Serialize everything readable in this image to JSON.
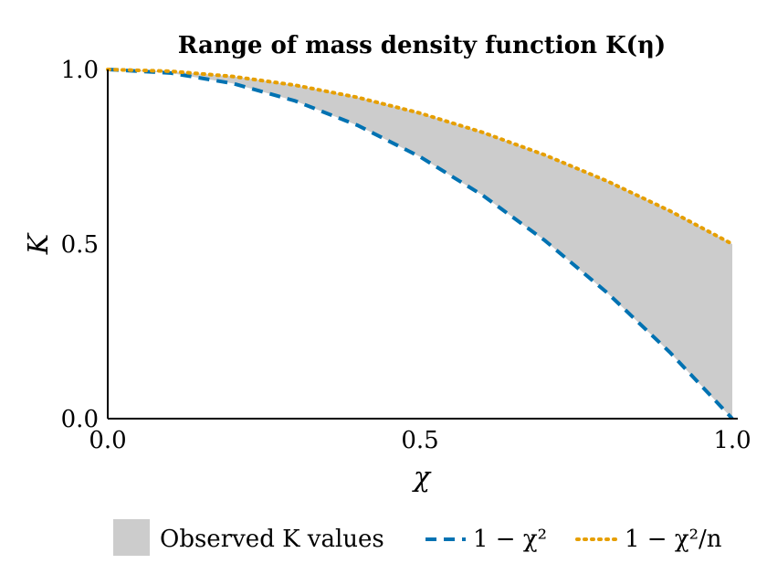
{
  "chart_data": {
    "type": "area",
    "title": "Range of mass density function K(η)",
    "xlabel": "χ",
    "ylabel": "K",
    "xlim": [
      0.0,
      1.0
    ],
    "ylim": [
      0.0,
      1.0
    ],
    "xticks": [
      "0.0",
      "0.5",
      "1.0"
    ],
    "yticks": [
      "0.0",
      "0.5",
      "1.0"
    ],
    "grid": false,
    "legend_position": "bottom",
    "band": {
      "name": "Observed K values",
      "color": "#cccccc",
      "lower_series": "1 − χ²",
      "upper_series": "1 − χ²/n"
    },
    "series": [
      {
        "name": "1 − χ²",
        "style": "dashed",
        "color": "#0072b2",
        "x": [
          0.0,
          0.1,
          0.2,
          0.3,
          0.4,
          0.5,
          0.6,
          0.7,
          0.8,
          0.9,
          1.0
        ],
        "y": [
          1.0,
          0.99,
          0.96,
          0.91,
          0.84,
          0.75,
          0.64,
          0.51,
          0.36,
          0.19,
          0.0
        ]
      },
      {
        "name": "1 − χ²/n",
        "style": "dotted",
        "color": "#e69f00",
        "x": [
          0.0,
          0.1,
          0.2,
          0.3,
          0.4,
          0.5,
          0.6,
          0.7,
          0.8,
          0.9,
          1.0
        ],
        "y": [
          1.0,
          0.995,
          0.98,
          0.955,
          0.92,
          0.875,
          0.82,
          0.755,
          0.68,
          0.595,
          0.5
        ]
      }
    ]
  }
}
